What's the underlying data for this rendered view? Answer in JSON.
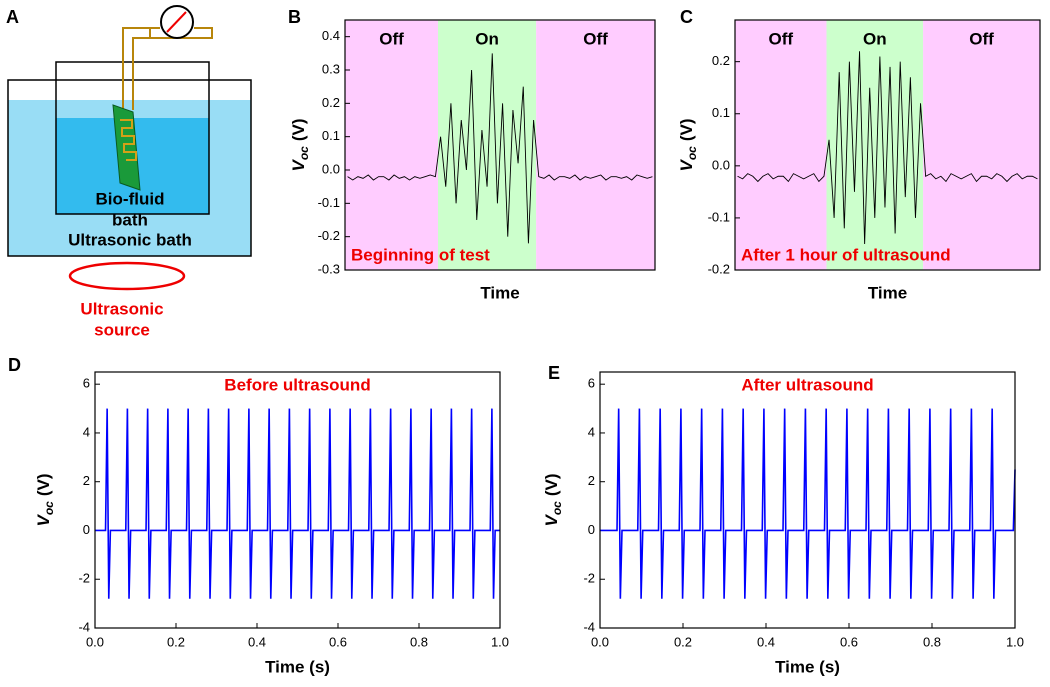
{
  "diagram": {
    "panel": "A",
    "lines": [
      "Bio-fluid",
      "bath",
      "Ultrasonic bath"
    ],
    "source": [
      "Ultrasonic",
      "source"
    ]
  },
  "chart_data": [
    {
      "panel": "B",
      "type": "line",
      "color": "#000000",
      "xlabel": "Time",
      "ylabel": {
        "symbol": "V",
        "subscript": "oc",
        "unit": "(V)"
      },
      "annotation": "Beginning of test",
      "regions": [
        {
          "label": "Off",
          "span": [
            0,
            18
          ],
          "color": "#ffccff"
        },
        {
          "label": "On",
          "span": [
            18,
            37
          ],
          "color": "#ccffcc"
        },
        {
          "label": "Off",
          "span": [
            37,
            60
          ],
          "color": "#ffccff"
        }
      ],
      "ylim": [
        -0.3,
        0.45
      ],
      "yticks": [
        -0.3,
        -0.2,
        -0.1,
        {
          "value": 0,
          "label": "0.0"
        },
        0.1,
        0.2,
        0.3,
        0.4
      ],
      "values": [
        -0.02,
        -0.03,
        -0.02,
        -0.025,
        -0.015,
        -0.03,
        -0.02,
        -0.02,
        -0.03,
        -0.015,
        -0.025,
        -0.02,
        -0.03,
        -0.02,
        -0.025,
        -0.02,
        -0.015,
        -0.02,
        0.1,
        -0.05,
        0.2,
        -0.1,
        0.15,
        0.0,
        0.3,
        -0.15,
        0.12,
        -0.05,
        0.35,
        -0.1,
        0.2,
        -0.2,
        0.18,
        0.02,
        0.25,
        -0.22,
        0.15,
        -0.02,
        -0.025,
        -0.015,
        -0.03,
        -0.02,
        -0.02,
        -0.025,
        -0.015,
        -0.03,
        -0.02,
        -0.025,
        -0.02,
        -0.015,
        -0.03,
        -0.02,
        -0.02,
        -0.025,
        -0.02,
        -0.03,
        -0.015,
        -0.02,
        -0.025,
        -0.02
      ]
    },
    {
      "panel": "C",
      "type": "line",
      "color": "#000000",
      "xlabel": "Time",
      "ylabel": {
        "symbol": "V",
        "subscript": "oc",
        "unit": "(V)"
      },
      "annotation": "After 1 hour of ultrasound",
      "regions": [
        {
          "label": "Off",
          "span": [
            0,
            18
          ],
          "color": "#ffccff"
        },
        {
          "label": "On",
          "span": [
            18,
            37
          ],
          "color": "#ccffcc"
        },
        {
          "label": "Off",
          "span": [
            37,
            60
          ],
          "color": "#ffccff"
        }
      ],
      "ylim": [
        -0.2,
        0.28
      ],
      "yticks": [
        -0.2,
        -0.1,
        {
          "value": 0,
          "label": "0.0"
        },
        0.1,
        0.2
      ],
      "values": [
        -0.02,
        -0.025,
        -0.015,
        -0.02,
        -0.03,
        -0.02,
        -0.015,
        -0.025,
        -0.02,
        -0.02,
        -0.03,
        -0.015,
        -0.02,
        -0.025,
        -0.02,
        -0.015,
        -0.03,
        -0.02,
        0.05,
        -0.1,
        0.18,
        -0.12,
        0.2,
        -0.05,
        0.22,
        -0.15,
        0.15,
        -0.1,
        0.21,
        -0.08,
        0.19,
        -0.13,
        0.2,
        -0.06,
        0.17,
        -0.1,
        0.12,
        -0.02,
        -0.015,
        -0.025,
        -0.02,
        -0.03,
        -0.015,
        -0.02,
        -0.025,
        -0.02,
        -0.015,
        -0.03,
        -0.02,
        -0.02,
        -0.025,
        -0.015,
        -0.02,
        -0.03,
        -0.02,
        -0.015,
        -0.025,
        -0.02,
        -0.02,
        -0.025
      ]
    },
    {
      "panel": "D",
      "type": "line",
      "color": "#0000ff",
      "xlabel": "Time (s)",
      "ylabel": {
        "symbol": "V",
        "subscript": "oc",
        "unit": "(V)"
      },
      "annotation": "Before ultrasound",
      "xlim": [
        0,
        1
      ],
      "xticks": [
        {
          "value": 0,
          "label": "0.0"
        },
        0.2,
        0.4,
        0.6,
        0.8,
        {
          "value": 1,
          "label": "1.0"
        }
      ],
      "ylim": [
        -4,
        6.5
      ],
      "yticks": [
        -4,
        -2,
        0,
        2,
        4,
        6
      ],
      "x": [
        0,
        0.026,
        0.03,
        0.034,
        0.038,
        0.076,
        0.08,
        0.084,
        0.088,
        0.126,
        0.13,
        0.134,
        0.138,
        0.176,
        0.18,
        0.184,
        0.188,
        0.226,
        0.23,
        0.234,
        0.238,
        0.276,
        0.28,
        0.284,
        0.288,
        0.326,
        0.33,
        0.334,
        0.338,
        0.376,
        0.38,
        0.384,
        0.388,
        0.426,
        0.43,
        0.434,
        0.438,
        0.476,
        0.48,
        0.484,
        0.488,
        0.526,
        0.53,
        0.534,
        0.538,
        0.576,
        0.58,
        0.584,
        0.588,
        0.626,
        0.63,
        0.634,
        0.638,
        0.676,
        0.68,
        0.684,
        0.688,
        0.726,
        0.73,
        0.734,
        0.738,
        0.776,
        0.78,
        0.784,
        0.788,
        0.826,
        0.83,
        0.834,
        0.838,
        0.876,
        0.88,
        0.884,
        0.888,
        0.926,
        0.93,
        0.934,
        0.938,
        0.976,
        0.98,
        0.984,
        0.988,
        1
      ],
      "values": [
        0,
        0,
        5,
        -2.8,
        0,
        0,
        5,
        -2.8,
        0,
        0,
        5,
        -2.8,
        0,
        0,
        5,
        -2.8,
        0,
        0,
        5,
        -2.8,
        0,
        0,
        5,
        -2.8,
        0,
        0,
        5,
        -2.8,
        0,
        0,
        5,
        -2.8,
        0,
        0,
        5,
        -2.8,
        0,
        0,
        5,
        -2.8,
        0,
        0,
        5,
        -2.8,
        0,
        0,
        5,
        -2.8,
        0,
        0,
        5,
        -2.8,
        0,
        0,
        5,
        -2.8,
        0,
        0,
        5,
        -2.8,
        0,
        0,
        5,
        -2.8,
        0,
        0,
        5,
        -2.8,
        0,
        0,
        5,
        -2.8,
        0,
        0,
        5,
        -2.8,
        0,
        0,
        5,
        -2.8,
        0,
        0
      ]
    },
    {
      "panel": "E",
      "type": "line",
      "color": "#0000ff",
      "xlabel": "Time (s)",
      "ylabel": {
        "symbol": "V",
        "subscript": "oc",
        "unit": "(V)"
      },
      "annotation": "After ultrasound",
      "xlim": [
        0,
        1
      ],
      "xticks": [
        {
          "value": 0,
          "label": "0.0"
        },
        0.2,
        0.4,
        0.6,
        0.8,
        {
          "value": 1,
          "label": "1.0"
        }
      ],
      "ylim": [
        -4,
        6.5
      ],
      "yticks": [
        -4,
        -2,
        0,
        2,
        4,
        6
      ],
      "x": [
        0,
        0.041,
        0.045,
        0.049,
        0.053,
        0.091,
        0.095,
        0.099,
        0.103,
        0.141,
        0.145,
        0.149,
        0.153,
        0.191,
        0.195,
        0.199,
        0.203,
        0.241,
        0.245,
        0.249,
        0.253,
        0.291,
        0.295,
        0.299,
        0.303,
        0.341,
        0.345,
        0.349,
        0.353,
        0.391,
        0.395,
        0.399,
        0.403,
        0.441,
        0.445,
        0.449,
        0.453,
        0.491,
        0.495,
        0.499,
        0.503,
        0.541,
        0.545,
        0.549,
        0.553,
        0.591,
        0.595,
        0.599,
        0.603,
        0.641,
        0.645,
        0.649,
        0.653,
        0.691,
        0.695,
        0.699,
        0.703,
        0.741,
        0.745,
        0.749,
        0.753,
        0.791,
        0.795,
        0.799,
        0.803,
        0.841,
        0.845,
        0.849,
        0.853,
        0.891,
        0.895,
        0.899,
        0.903,
        0.941,
        0.945,
        0.949,
        0.953,
        0.996,
        1
      ],
      "values": [
        0,
        0,
        5,
        -2.8,
        0,
        0,
        5,
        -2.8,
        0,
        0,
        5,
        -2.8,
        0,
        0,
        5,
        -2.8,
        0,
        0,
        5,
        -2.8,
        0,
        0,
        5,
        -2.8,
        0,
        0,
        5,
        -2.8,
        0,
        0,
        5,
        -2.8,
        0,
        0,
        5,
        -2.8,
        0,
        0,
        5,
        -2.8,
        0,
        0,
        5,
        -2.8,
        0,
        0,
        5,
        -2.8,
        0,
        0,
        5,
        -2.8,
        0,
        0,
        5,
        -2.8,
        0,
        0,
        5,
        -2.8,
        0,
        0,
        5,
        -2.8,
        0,
        0,
        5,
        -2.8,
        0,
        0,
        5,
        -2.8,
        0,
        0,
        5,
        -2.8,
        0,
        0,
        2.5
      ]
    }
  ]
}
